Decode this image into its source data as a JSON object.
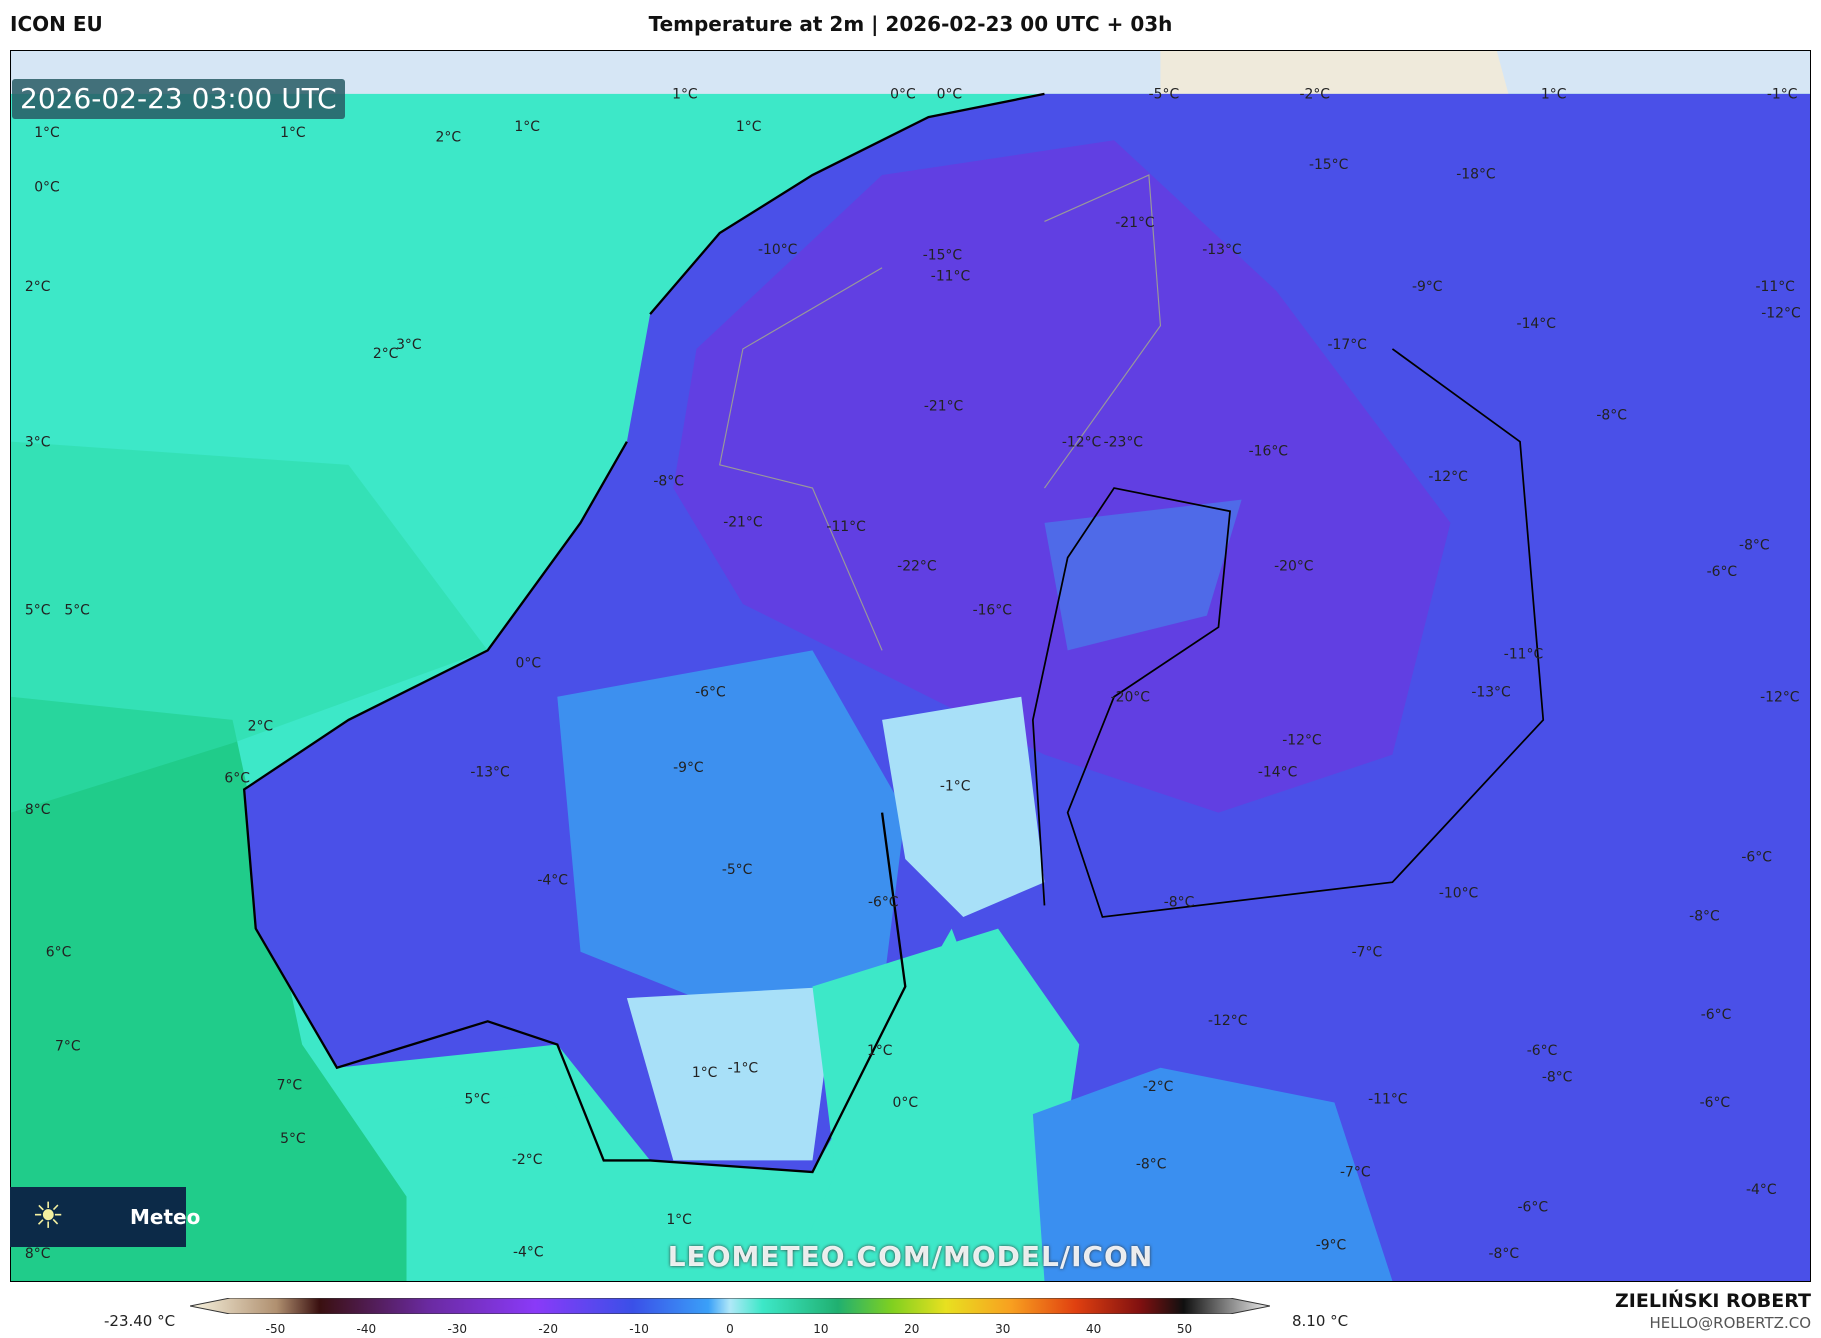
{
  "header": {
    "model": "ICON EU",
    "title": "Temperature at 2m | 2026-02-23 00 UTC + 03h"
  },
  "map": {
    "valid_time": "2026-02-23 03:00 UTC",
    "watermark": "LEOMETEO.COM/MODEL/ICON",
    "logo_text": "Meteo",
    "logo_icon": "sun-icon",
    "labels": [
      "1°C",
      "0°C",
      "0°C",
      "-5°C",
      "-2°C",
      "1°C",
      "-1°C",
      "1°C",
      "1°C",
      "2°C",
      "1°C",
      "1°C",
      "0°C",
      "-15°C",
      "-18°C",
      "-21°C",
      "-13°C",
      "-10°C",
      "-15°C",
      "-11°C",
      "-9°C",
      "2°C",
      "-11°C",
      "-12°C",
      "-14°C",
      "-17°C",
      "3°C",
      "2°C",
      "-21°C",
      "-8°C",
      "3°C",
      "-12°C",
      "-23°C",
      "-16°C",
      "-8°C",
      "-12°C",
      "-21°C",
      "-11°C",
      "-8°C",
      "-22°C",
      "-20°C",
      "-6°C",
      "5°C",
      "5°C",
      "-16°C",
      "-11°C",
      "0°C",
      "-6°C",
      "-13°C",
      "-20°C",
      "-12°C",
      "2°C",
      "-12°C",
      "-9°C",
      "-13°C",
      "-14°C",
      "6°C",
      "-1°C",
      "8°C",
      "-5°C",
      "-6°C",
      "-4°C",
      "-6°C",
      "-8°C",
      "-10°C",
      "-8°C",
      "6°C",
      "-7°C",
      "-12°C",
      "-6°C",
      "7°C",
      "1°C",
      "-6°C",
      "1°C",
      "-1°C",
      "-8°C",
      "7°C",
      "-2°C",
      "5°C",
      "0°C",
      "-11°C",
      "-6°C",
      "5°C",
      "-2°C",
      "-8°C",
      "-7°C",
      "-4°C",
      "1°C",
      "-6°C",
      "-4°C",
      "-9°C",
      "-8°C",
      "8°C"
    ],
    "colors": {
      "ocean_north": "#3de8c8",
      "ocean_south": "#20cc8a",
      "land_cold": "#4a50e8",
      "land_very_cold": "#6a3ae0",
      "land_mild": "#3aa0f0",
      "near_zero": "#a8e0f8",
      "ice": "#d6e6f5",
      "snow_land": "#efeadb"
    }
  },
  "legend": {
    "min": "-23.40 °C",
    "max": "8.10 °C",
    "ticks": [
      "-50",
      "-40",
      "-30",
      "-20",
      "-10",
      "0",
      "10",
      "20",
      "30",
      "40",
      "50"
    ],
    "range": [
      -55,
      55
    ]
  },
  "credits": {
    "author": "ZIELIŃSKI ROBERT",
    "email": "HELLO@ROBERTZ.CO"
  }
}
